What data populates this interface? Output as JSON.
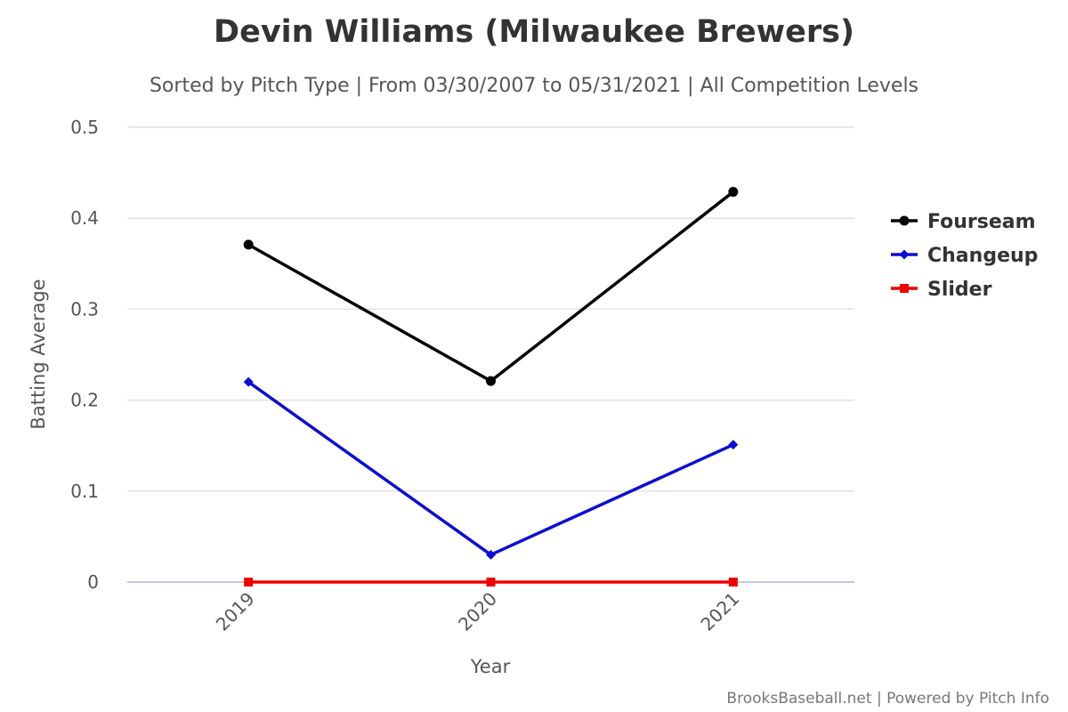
{
  "chart_data": {
    "type": "line",
    "title": "Devin Williams (Milwaukee Brewers)",
    "subtitle": "Sorted by Pitch Type | From 03/30/2007 to 05/31/2021 | All Competition Levels",
    "xlabel": "Year",
    "ylabel": "Batting Average",
    "categories": [
      "2019",
      "2020",
      "2021"
    ],
    "ylim": [
      0,
      0.5
    ],
    "yticks": [
      "0",
      "0.1",
      "0.2",
      "0.3",
      "0.4",
      "0.5"
    ],
    "grid": true,
    "legend_position": "right",
    "series": [
      {
        "name": "Fourseam",
        "values": [
          0.371,
          0.221,
          0.429
        ],
        "color": "#000000",
        "marker": "circle"
      },
      {
        "name": "Changeup",
        "values": [
          0.22,
          0.03,
          0.151
        ],
        "color": "#0d0dd6",
        "marker": "diamond"
      },
      {
        "name": "Slider",
        "values": [
          0,
          0,
          0
        ],
        "color": "#ee0000",
        "marker": "square"
      }
    ]
  },
  "credits": "BrooksBaseball.net | Powered by Pitch Info"
}
